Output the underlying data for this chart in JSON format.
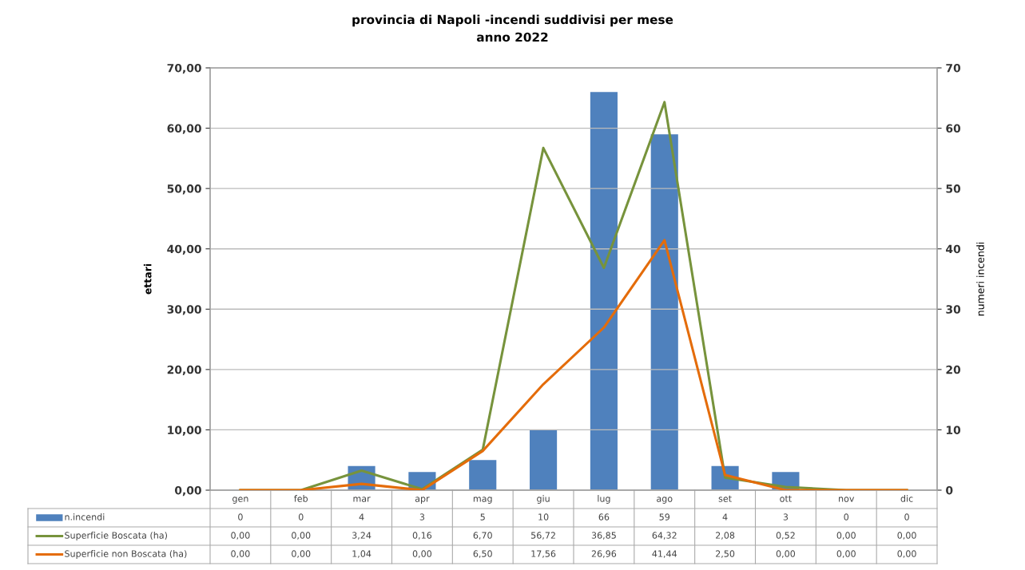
{
  "chart_data": {
    "type": "bar",
    "title": "provincia di Napoli -incendi suddivisi per mese",
    "subtitle": "anno 2022",
    "ylabel": "ettari",
    "y2label": "numeri incendi",
    "categories": [
      "gen",
      "feb",
      "mar",
      "apr",
      "mag",
      "giu",
      "lug",
      "ago",
      "set",
      "ott",
      "nov",
      "dic"
    ],
    "series": [
      {
        "name": "n.incendi",
        "axis": "y2",
        "color": "#4f81bd",
        "values": [
          0,
          0,
          4,
          3,
          5,
          10,
          66,
          59,
          4,
          3,
          0,
          0
        ],
        "value_labels": [
          "0",
          "0",
          "4",
          "3",
          "5",
          "10",
          "66",
          "59",
          "4",
          "3",
          "0",
          "0"
        ]
      },
      {
        "name": "Superficie Boscata (ha)",
        "type": "line",
        "color": "#77933c",
        "values": [
          0.0,
          0.0,
          3.24,
          0.16,
          6.7,
          56.72,
          36.85,
          64.32,
          2.08,
          0.52,
          0.0,
          0.0
        ],
        "value_labels": [
          "0,00",
          "0,00",
          "3,24",
          "0,16",
          "6,70",
          "56,72",
          "36,85",
          "64,32",
          "2,08",
          "0,52",
          "0,00",
          "0,00"
        ]
      },
      {
        "name": "Superficie non Boscata (ha)",
        "type": "line",
        "color": "#e46c0a",
        "values": [
          0.0,
          0.0,
          1.04,
          0.0,
          6.5,
          17.56,
          26.96,
          41.44,
          2.5,
          0.0,
          0.0,
          0.0
        ],
        "value_labels": [
          "0,00",
          "0,00",
          "1,04",
          "0,00",
          "6,50",
          "17,56",
          "26,96",
          "41,44",
          "2,50",
          "0,00",
          "0,00",
          "0,00"
        ]
      }
    ],
    "ylim": [
      0,
      70
    ],
    "yticks": [
      {
        "value": 0,
        "label": "0,00"
      },
      {
        "value": 10,
        "label": "10,00"
      },
      {
        "value": 20,
        "label": "20,00"
      },
      {
        "value": 30,
        "label": "30,00"
      },
      {
        "value": 40,
        "label": "40,00"
      },
      {
        "value": 50,
        "label": "50,00"
      },
      {
        "value": 60,
        "label": "60,00"
      },
      {
        "value": 70,
        "label": "70,00"
      }
    ],
    "y2lim": [
      0,
      70
    ],
    "y2ticks": [
      0,
      10,
      20,
      30,
      40,
      50,
      60,
      70
    ],
    "grid": "y",
    "legend": "bottom",
    "marker": "none",
    "line_style": "solid"
  }
}
